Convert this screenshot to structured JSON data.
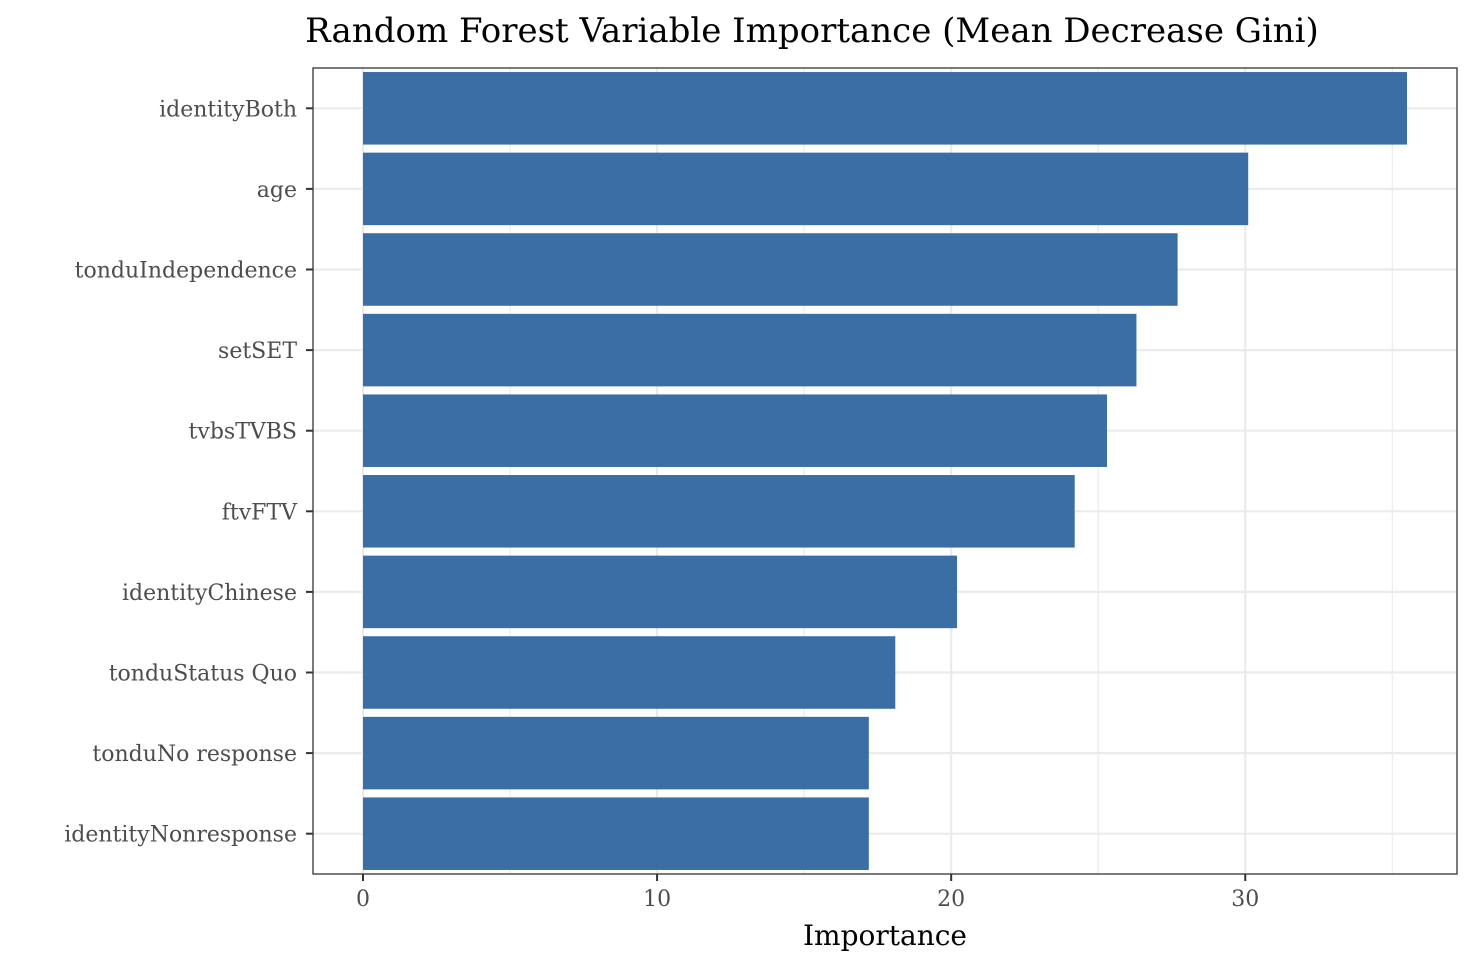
{
  "chart_data": {
    "type": "bar",
    "orientation": "horizontal",
    "title": "Random Forest Variable Importance (Mean Decrease Gini)",
    "xlabel": "Importance",
    "ylabel": "",
    "categories": [
      "identityBoth",
      "age",
      "tonduIndependence",
      "setSET",
      "tvbsTVBS",
      "ftvFTV",
      "identityChinese",
      "tonduStatus Quo",
      "tonduNo response",
      "identityNonresponse"
    ],
    "values": [
      35.5,
      30.1,
      27.7,
      26.3,
      25.3,
      24.2,
      20.2,
      18.1,
      17.2,
      17.2
    ],
    "xlim": [
      -1.7,
      37.2
    ],
    "xticks": [
      0,
      10,
      20,
      30
    ],
    "xtick_labels": [
      "0",
      "10",
      "20",
      "30"
    ],
    "grid": true,
    "bar_color": "#3a6ea5",
    "grid_color": "#ebebeb",
    "panel_border_color": "#333333"
  }
}
